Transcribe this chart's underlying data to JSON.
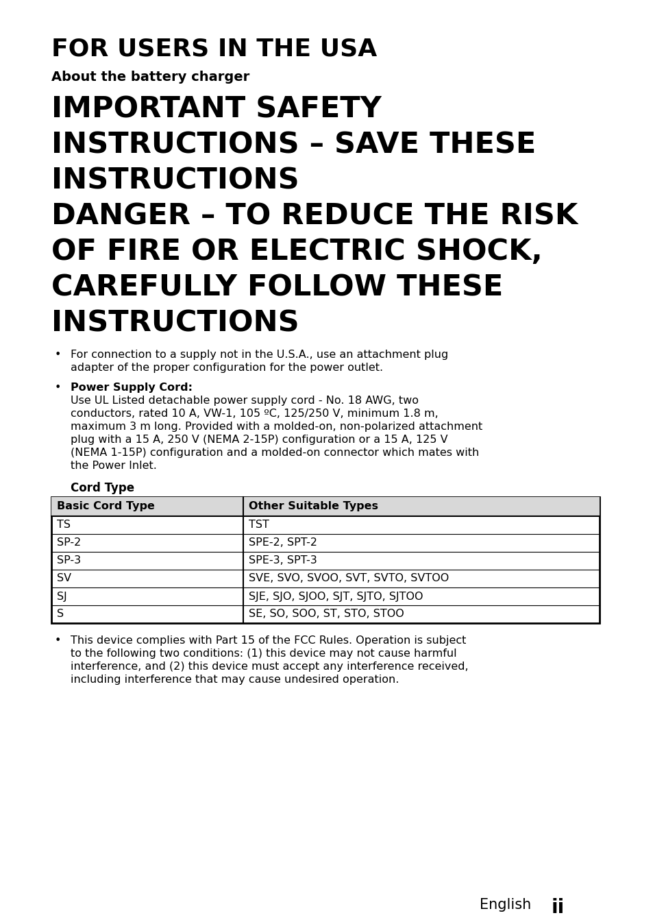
{
  "bg_color": "#ffffff",
  "text_color": "#000000",
  "title1": "FOR USERS IN THE USA",
  "title2": "About the battery charger",
  "heading_lines": [
    "IMPORTANT SAFETY",
    "INSTRUCTIONS – SAVE THESE",
    "INSTRUCTIONS",
    "DANGER – TO REDUCE THE RISK",
    "OF FIRE OR ELECTRIC SHOCK,",
    "CAREFULLY FOLLOW THESE",
    "INSTRUCTIONS"
  ],
  "bullet1_lines": [
    "For connection to a supply not in the U.S.A., use an attachment plug",
    "adapter of the proper configuration for the power outlet."
  ],
  "bullet2_label": "Power Supply Cord:",
  "bullet2_lines": [
    "Use UL Listed detachable power supply cord - No. 18 AWG, two",
    "conductors, rated 10 A, VW-1, 105 ºC, 125/250 V, minimum 1.8 m,",
    "maximum 3 m long. Provided with a molded-on, non-polarized attachment",
    "plug with a 15 A, 250 V (NEMA 2-15P) configuration or a 15 A, 125 V",
    "(NEMA 1-15P) configuration and a molded-on connector which mates with",
    "the Power Inlet."
  ],
  "cord_type_label": "Cord Type",
  "table_headers": [
    "Basic Cord Type",
    "Other Suitable Types"
  ],
  "table_rows": [
    [
      "TS",
      "TST"
    ],
    [
      "SP-2",
      "SPE-2, SPT-2"
    ],
    [
      "SP-3",
      "SPE-3, SPT-3"
    ],
    [
      "SV",
      "SVE, SVO, SVOO, SVT, SVTO, SVTOO"
    ],
    [
      "SJ",
      "SJE, SJO, SJOO, SJT, SJTO, SJTOO"
    ],
    [
      "S",
      "SE, SO, SOO, ST, STO, STOO"
    ]
  ],
  "bullet3_lines": [
    "This device complies with Part 15 of the FCC Rules. Operation is subject",
    "to the following two conditions: (1) this device may not cause harmful",
    "interference, and (2) this device must accept any interference received,",
    "including interference that may cause undesired operation."
  ],
  "footer_text": "English",
  "footer_bold": "ii"
}
